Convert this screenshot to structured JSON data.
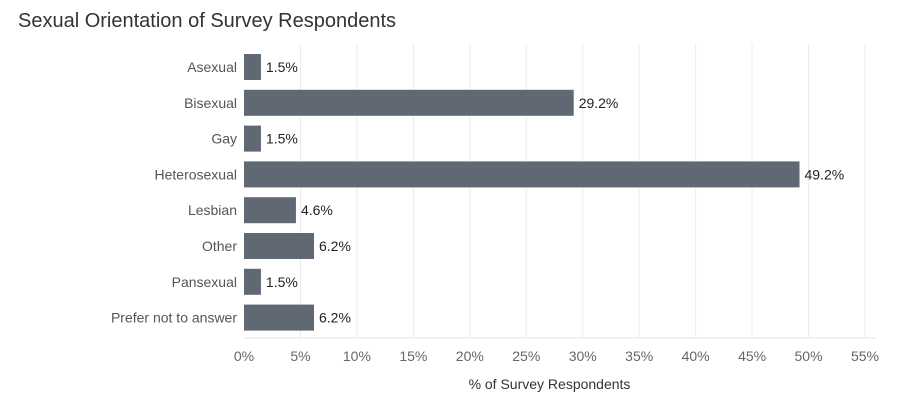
{
  "chart_data": {
    "type": "bar",
    "orientation": "horizontal",
    "title": "Sexual Orientation of Survey Respondents",
    "xlabel": "% of Survey Respondents",
    "ylabel": "",
    "categories": [
      "Asexual",
      "Bisexual",
      "Gay",
      "Heterosexual",
      "Lesbian",
      "Other",
      "Pansexual",
      "Prefer not to answer"
    ],
    "values": [
      1.5,
      29.2,
      1.5,
      49.2,
      4.6,
      6.2,
      1.5,
      6.2
    ],
    "value_labels": [
      "1.5%",
      "29.2%",
      "1.5%",
      "49.2%",
      "4.6%",
      "6.2%",
      "1.5%",
      "6.2%"
    ],
    "xlim": [
      0,
      55
    ],
    "xticks": [
      0,
      5,
      10,
      15,
      20,
      25,
      30,
      35,
      40,
      45,
      50,
      55
    ],
    "xtick_labels": [
      "0%",
      "5%",
      "10%",
      "15%",
      "20%",
      "25%",
      "30%",
      "35%",
      "40%",
      "45%",
      "50%",
      "55%"
    ],
    "grid": true,
    "bar_color": "#5f6873",
    "grid_color": "#ebebeb"
  }
}
